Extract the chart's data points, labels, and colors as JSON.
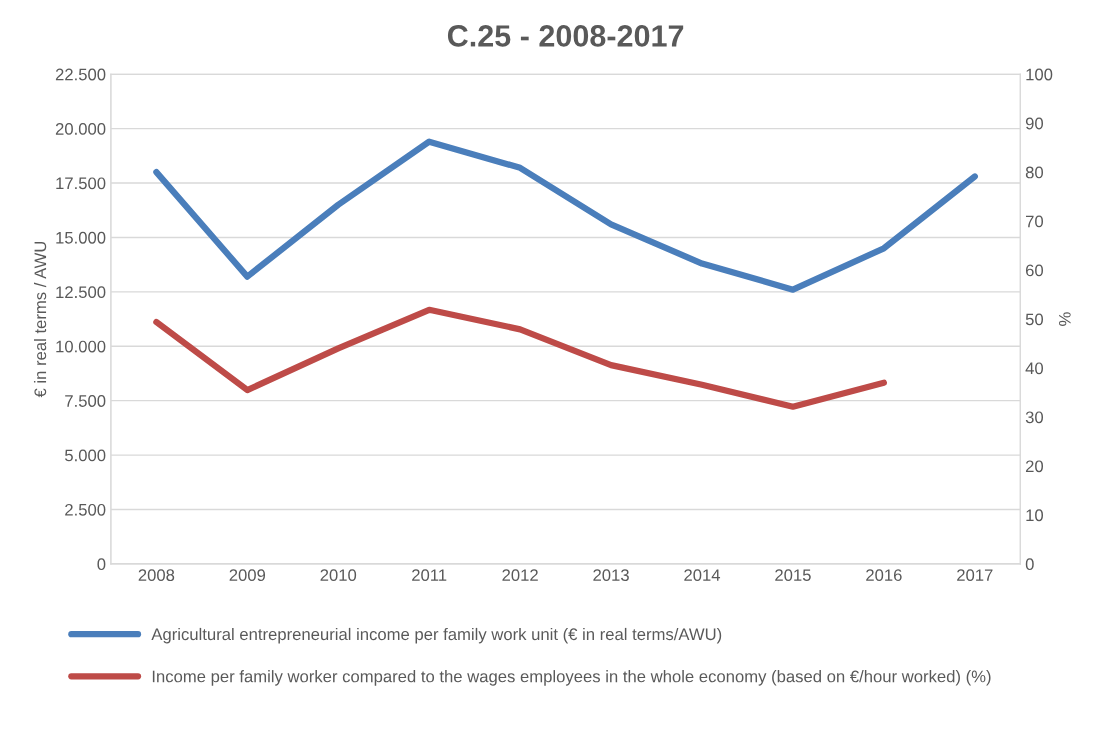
{
  "chart_data": {
    "type": "line",
    "title": "C.25 - 2008-2017",
    "ylabel": "€ in real terms / AWU",
    "y2label": "%",
    "categories": [
      "2008",
      "2009",
      "2010",
      "2011",
      "2012",
      "2013",
      "2014",
      "2015",
      "2016",
      "2017"
    ],
    "series": [
      {
        "name": "Agricultural entrepreneurial income per family work unit (€ in real terms/AWU)",
        "color": "#4a7ebb",
        "values": [
          18000,
          13200,
          16500,
          19400,
          18200,
          15600,
          13800,
          12600,
          14500,
          17800
        ]
      },
      {
        "name": "Income per family worker compared to the wages employees in the whole economy (based on €/hour worked) (%)",
        "color": "#be4b48",
        "axis": "y2",
        "values": [
          49.4,
          35.5,
          44.0,
          51.9,
          47.9,
          40.6,
          36.6,
          32.1,
          37.0,
          null
        ]
      }
    ],
    "ylim": [
      0,
      22500
    ],
    "yticks": [
      0,
      {
        "value": 2500,
        "label": "2.500"
      },
      {
        "value": 5000,
        "label": "5.000"
      },
      {
        "value": 7500,
        "label": "7.500"
      },
      {
        "value": 10000,
        "label": "10.000"
      },
      {
        "value": 12500,
        "label": "12.500"
      },
      {
        "value": 15000,
        "label": "15.000"
      },
      {
        "value": 17500,
        "label": "17.500"
      },
      {
        "value": 20000,
        "label": "20.000"
      },
      {
        "value": 22500,
        "label": "22.500"
      }
    ],
    "y2lim": [
      0,
      100
    ],
    "y2ticks": [
      0,
      10,
      20,
      30,
      40,
      50,
      60,
      70,
      80,
      90,
      100
    ],
    "grid": "y",
    "legend": "bottom",
    "marker": "none",
    "line_style": "solid"
  }
}
